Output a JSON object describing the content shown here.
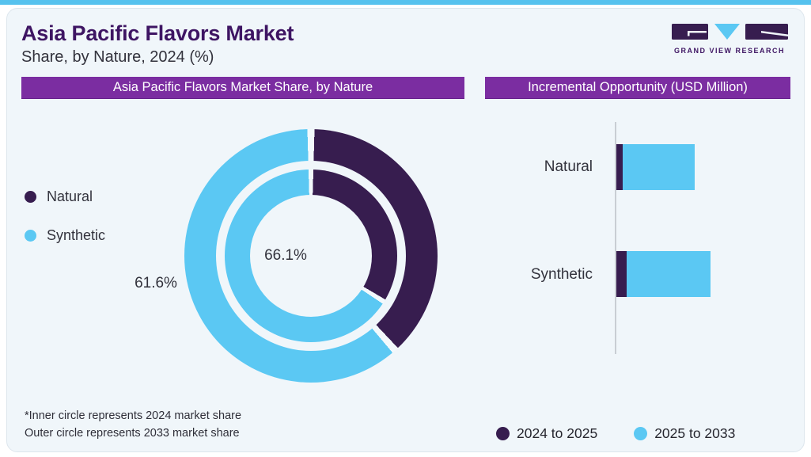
{
  "page": {
    "title": "Asia Pacific Flavors Market",
    "subtitle": "Share, by Nature, 2024 (%)",
    "footnote_line1": "*Inner circle represents 2024 market share",
    "footnote_line2": "Outer circle represents 2033 market share"
  },
  "logo": {
    "brand": "GRAND VIEW RESEARCH"
  },
  "panels": {
    "left_header": "Asia Pacific Flavors Market Share, by Nature",
    "right_header": "Incremental Opportunity (USD Million)"
  },
  "colors": {
    "natural": "#371d4f",
    "synthetic": "#5bc8f3",
    "header_bar": "#7b2da1",
    "title_text": "#3e1563",
    "body_text": "#32323c",
    "card_bg": "#f0f6fa",
    "top_accent": "#56c2ee",
    "separator": "#f3f9fc",
    "axis_line": "#c9ced4"
  },
  "donut_legend": [
    {
      "label": "Natural",
      "color": "#371d4f"
    },
    {
      "label": "Synthetic",
      "color": "#5bc8f3"
    }
  ],
  "bar_legend": [
    {
      "label": "2024 to 2025",
      "color": "#371d4f"
    },
    {
      "label": "2025 to 2033",
      "color": "#5bc8f3"
    }
  ],
  "chart_data": [
    {
      "type": "pie",
      "subtype": "double-ring-donut",
      "title": "Asia Pacific Flavors Market Share, by Nature",
      "legend": [
        "Natural",
        "Synthetic"
      ],
      "start_angle_deg": 0,
      "direction": "clockwise",
      "rings": [
        {
          "name": "2024 (inner circle)",
          "segments": [
            {
              "label": "Natural",
              "value": 33.9
            },
            {
              "label": "Synthetic",
              "value": 66.1
            }
          ]
        },
        {
          "name": "2033 (outer circle)",
          "segments": [
            {
              "label": "Natural",
              "value": 38.4
            },
            {
              "label": "Synthetic",
              "value": 61.6
            }
          ]
        }
      ],
      "visible_labels": [
        {
          "text": "66.1%",
          "refers_to": "Synthetic share, 2024 inner ring"
        },
        {
          "text": "61.6%",
          "refers_to": "Synthetic share, 2033 outer ring"
        }
      ]
    },
    {
      "type": "bar",
      "orientation": "horizontal",
      "title": "Incremental Opportunity (USD Million)",
      "categories": [
        "Natural",
        "Synthetic"
      ],
      "series": [
        {
          "name": "2024 to 2025",
          "values": [
            8,
            13
          ]
        },
        {
          "name": "2025 to 2033",
          "values": [
            91,
            106
          ]
        }
      ],
      "note": "No numeric axis or data labels are shown; values are relative bar lengths estimated in pixels.",
      "legend_position": "bottom",
      "grid": false
    }
  ]
}
